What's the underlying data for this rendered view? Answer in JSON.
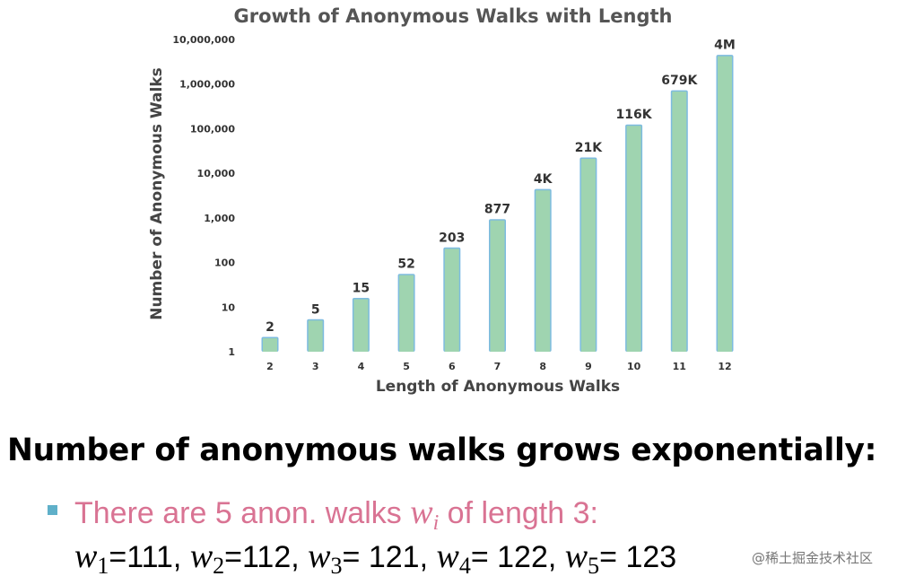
{
  "chart_data": {
    "type": "bar",
    "title": "Growth of Anonymous Walks with Length",
    "xlabel": "Length of Anonymous Walks",
    "ylabel": "Number of Anonymous Walks",
    "yscale": "log",
    "ylim": [
      1,
      10000000
    ],
    "yticks": [
      1,
      10,
      100,
      1000,
      10000,
      100000,
      1000000,
      10000000
    ],
    "ytick_labels": [
      "1",
      "10",
      "100",
      "1,000",
      "10,000",
      "100,000",
      "1,000,000",
      "10,000,000"
    ],
    "categories": [
      "2",
      "3",
      "4",
      "5",
      "6",
      "7",
      "8",
      "9",
      "10",
      "11",
      "12"
    ],
    "values": [
      2,
      5,
      15,
      52,
      203,
      877,
      4140,
      21147,
      115975,
      678570,
      4213597
    ],
    "data_labels": [
      "2",
      "5",
      "15",
      "52",
      "203",
      "877",
      "4K",
      "21K",
      "116K",
      "679K",
      "4M"
    ],
    "grid": false,
    "bar_color": "#9fd4b0",
    "bar_edge_color": "#7dbbe0"
  },
  "text": {
    "headline": "Number of anonymous walks grows exponentially:",
    "line1_pre": "There are 5 anon. walks ",
    "line1_var": "w",
    "line1_sub": "i",
    "line1_post": " of length 3:",
    "walks": [
      {
        "var": "w",
        "sub": "1",
        "sep": "=",
        "value": "111",
        "trail": ", "
      },
      {
        "var": "w",
        "sub": "2",
        "sep": "=",
        "value": "112",
        "trail": ", "
      },
      {
        "var": "w",
        "sub": "3",
        "sep": "= ",
        "value": "121",
        "trail": ", "
      },
      {
        "var": "w",
        "sub": "4",
        "sep": "= ",
        "value": "122",
        "trail": ", "
      },
      {
        "var": "w",
        "sub": "5",
        "sep": "= ",
        "value": "123",
        "trail": ""
      }
    ],
    "watermark": "@稀土掘金技术社区"
  },
  "colors": {
    "headline": "#000000",
    "highlight_text": "#d97393",
    "bullet": "#5fb0c9",
    "axis_text": "#444444",
    "title_text": "#555555"
  }
}
